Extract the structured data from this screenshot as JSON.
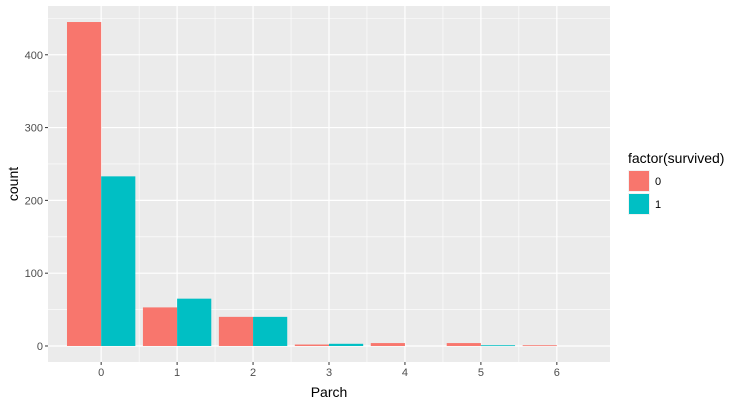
{
  "chart_data": {
    "type": "bar",
    "title": "",
    "xlabel": "Parch",
    "ylabel": "count",
    "categories": [
      "0",
      "1",
      "2",
      "3",
      "4",
      "5",
      "6"
    ],
    "series": [
      {
        "name": "0",
        "color": "#F8766D",
        "values": [
          445,
          53,
          40,
          2,
          4,
          4,
          1
        ]
      },
      {
        "name": "1",
        "color": "#00BFC4",
        "values": [
          233,
          65,
          40,
          3,
          0,
          1,
          0
        ]
      }
    ],
    "y_ticks": [
      0,
      100,
      200,
      300,
      400
    ],
    "ylim": [
      -22,
      467
    ],
    "xlim": [
      -0.7,
      6.7
    ],
    "grid": true,
    "legend": {
      "title": "factor(survived)",
      "placement": "right"
    },
    "panel_background": "#EBEBEB",
    "grid_color": "#FFFFFF"
  }
}
